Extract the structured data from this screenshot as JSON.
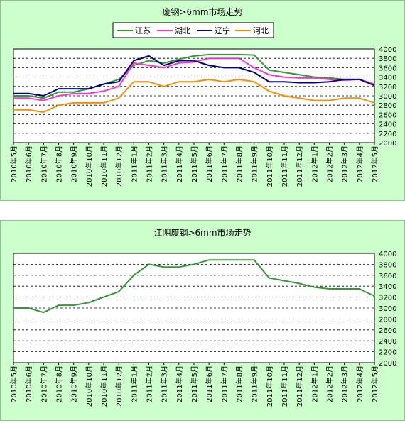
{
  "chart_data": [
    {
      "type": "line",
      "title": "废钢>6mm市场走势",
      "xlabel": "",
      "ylabel": "",
      "ylim": [
        2000,
        4000
      ],
      "yticks": [
        2000,
        2200,
        2400,
        2600,
        2800,
        3000,
        3200,
        3400,
        3600,
        3800,
        4000
      ],
      "grid": true,
      "legend_position": "top",
      "x_labels": [
        "2010年5月",
        "2010年6月",
        "2010年7月",
        "2010年8月",
        "2010年9月",
        "2010年10月",
        "2010年11月",
        "2010年12月",
        "2011年1月",
        "2011年2月",
        "2011年3月",
        "2011年4月",
        "2011年5月",
        "2011年6月",
        "2011年7月",
        "2011年8月",
        "2011年9月",
        "2011年10月",
        "2011年11月",
        "2011年12月",
        "2012年1月",
        "2012年2月",
        "2012年3月",
        "2012年4月",
        "2012年5月"
      ],
      "series": [
        {
          "name": "江苏",
          "color": "#339933",
          "values": [
            3000,
            3000,
            2950,
            3080,
            3080,
            3150,
            3250,
            3350,
            3650,
            3750,
            3700,
            3780,
            3850,
            3880,
            3880,
            3880,
            3870,
            3550,
            3500,
            3450,
            3400,
            3380,
            3350,
            3350,
            3250
          ]
        },
        {
          "name": "湖北",
          "color": "#ff33cc",
          "values": [
            2950,
            2950,
            2900,
            3000,
            3050,
            3050,
            3100,
            3200,
            3700,
            3650,
            3600,
            3700,
            3720,
            3800,
            3800,
            3800,
            3600,
            3450,
            3400,
            3380,
            3380,
            3350,
            3330,
            3350,
            3250
          ]
        },
        {
          "name": "辽宁",
          "color": "#000080",
          "values": [
            3050,
            3050,
            3000,
            3150,
            3150,
            3150,
            3250,
            3300,
            3750,
            3850,
            3650,
            3750,
            3750,
            3650,
            3600,
            3600,
            3500,
            3300,
            3300,
            3280,
            3280,
            3300,
            3350,
            3350,
            3220
          ]
        },
        {
          "name": "河北",
          "color": "#ff8c00",
          "values": [
            2700,
            2700,
            2650,
            2800,
            2850,
            2850,
            2850,
            2950,
            3300,
            3300,
            3200,
            3300,
            3300,
            3350,
            3300,
            3350,
            3300,
            3100,
            3000,
            2950,
            2900,
            2900,
            2950,
            2950,
            2850
          ]
        }
      ]
    },
    {
      "type": "line",
      "title": "江阴废钢>6mm市场走势",
      "xlabel": "",
      "ylabel": "",
      "ylim": [
        2000,
        4000
      ],
      "yticks": [
        2000,
        2200,
        2400,
        2600,
        2800,
        3000,
        3200,
        3400,
        3600,
        3800,
        4000
      ],
      "grid": true,
      "legend_position": "none",
      "x_labels": [
        "2010年5月",
        "2010年6月",
        "2010年7月",
        "2010年8月",
        "2010年9月",
        "2010年10月",
        "2010年11月",
        "2010年12月",
        "2011年1月",
        "2011年2月",
        "2011年3月",
        "2011年4月",
        "2011年5月",
        "2011年6月",
        "2011年7月",
        "2011年8月",
        "2011年9月",
        "2011年10月",
        "2011年11月",
        "2011年12月",
        "2012年1月",
        "2012年2月",
        "2012年3月",
        "2012年4月",
        "2012年5月"
      ],
      "series": [
        {
          "color": "#339933",
          "values": [
            3000,
            3000,
            2920,
            3050,
            3050,
            3100,
            3200,
            3300,
            3600,
            3800,
            3750,
            3750,
            3800,
            3880,
            3880,
            3880,
            3880,
            3550,
            3500,
            3450,
            3380,
            3350,
            3350,
            3350,
            3220
          ]
        }
      ]
    }
  ]
}
